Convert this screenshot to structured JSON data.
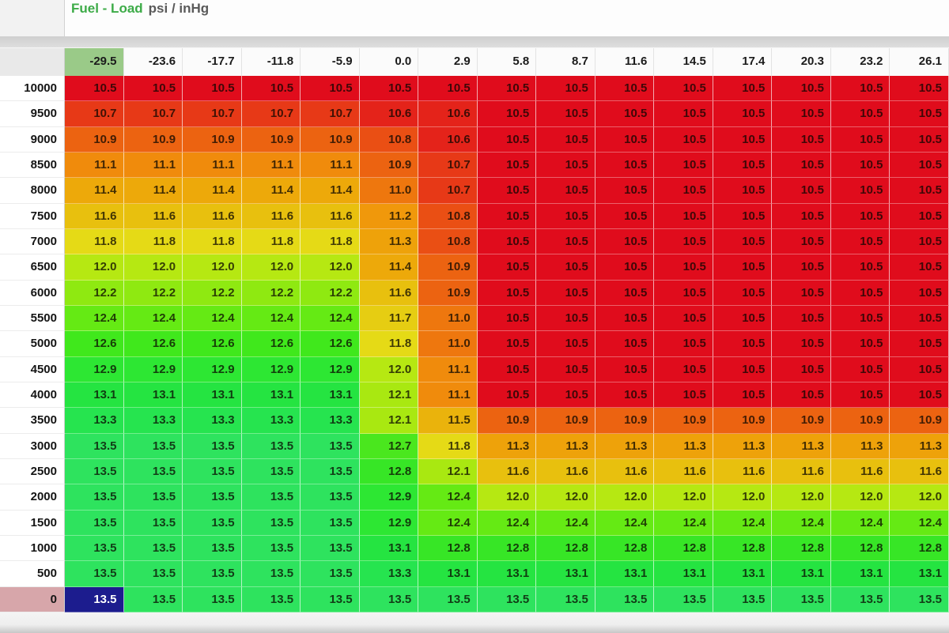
{
  "header": {
    "title": "Fuel - Load",
    "units": "psi / inHg"
  },
  "colors": {
    "title_green": "#3cab47",
    "units_gray": "#5a5a5a",
    "selected_cell_bg": "#1c1c8e",
    "selected_cell_text": "#ffffff",
    "selected_col_header_bg": "#9aca88",
    "selected_row_header_bg": "#d7a6aa",
    "value_colors": {
      "10.5": "#e00c1c",
      "10.6": "#e4231a",
      "10.7": "#e73917",
      "10.8": "#ea4f14",
      "10.9": "#ec6311",
      "11.0": "#ee770e",
      "11.1": "#f08b0c",
      "11.2": "#f0980b",
      "11.3": "#eea20a",
      "11.4": "#eda90a",
      "11.5": "#eab30c",
      "11.6": "#e8c00e",
      "11.7": "#e6cd12",
      "11.8": "#e5da16",
      "12.0": "#b6e812",
      "12.1": "#a9e811",
      "12.2": "#8fe911",
      "12.4": "#65ea14",
      "12.6": "#40e81c",
      "12.7": "#4ae71e",
      "12.8": "#37e626",
      "12.9": "#2de733",
      "13.1": "#25e441",
      "13.3": "#26e44f",
      "13.5": "#2ee35e"
    }
  },
  "table": {
    "col_headers": [
      "-29.5",
      "-23.6",
      "-17.7",
      "-11.8",
      "-5.9",
      "0.0",
      "2.9",
      "5.8",
      "8.7",
      "11.6",
      "14.5",
      "17.4",
      "20.3",
      "23.2",
      "26.1"
    ],
    "row_headers": [
      "10000",
      "9500",
      "9000",
      "8500",
      "8000",
      "7500",
      "7000",
      "6500",
      "6000",
      "5500",
      "5000",
      "4500",
      "4000",
      "3500",
      "3000",
      "2500",
      "2000",
      "1500",
      "1000",
      "500",
      "0"
    ],
    "selected": {
      "row_index": 20,
      "col_index": 0,
      "value": "13.5"
    },
    "rows": [
      [
        "10.5",
        "10.5",
        "10.5",
        "10.5",
        "10.5",
        "10.5",
        "10.5",
        "10.5",
        "10.5",
        "10.5",
        "10.5",
        "10.5",
        "10.5",
        "10.5",
        "10.5"
      ],
      [
        "10.7",
        "10.7",
        "10.7",
        "10.7",
        "10.7",
        "10.6",
        "10.6",
        "10.5",
        "10.5",
        "10.5",
        "10.5",
        "10.5",
        "10.5",
        "10.5",
        "10.5"
      ],
      [
        "10.9",
        "10.9",
        "10.9",
        "10.9",
        "10.9",
        "10.8",
        "10.6",
        "10.5",
        "10.5",
        "10.5",
        "10.5",
        "10.5",
        "10.5",
        "10.5",
        "10.5"
      ],
      [
        "11.1",
        "11.1",
        "11.1",
        "11.1",
        "11.1",
        "10.9",
        "10.7",
        "10.5",
        "10.5",
        "10.5",
        "10.5",
        "10.5",
        "10.5",
        "10.5",
        "10.5"
      ],
      [
        "11.4",
        "11.4",
        "11.4",
        "11.4",
        "11.4",
        "11.0",
        "10.7",
        "10.5",
        "10.5",
        "10.5",
        "10.5",
        "10.5",
        "10.5",
        "10.5",
        "10.5"
      ],
      [
        "11.6",
        "11.6",
        "11.6",
        "11.6",
        "11.6",
        "11.2",
        "10.8",
        "10.5",
        "10.5",
        "10.5",
        "10.5",
        "10.5",
        "10.5",
        "10.5",
        "10.5"
      ],
      [
        "11.8",
        "11.8",
        "11.8",
        "11.8",
        "11.8",
        "11.3",
        "10.8",
        "10.5",
        "10.5",
        "10.5",
        "10.5",
        "10.5",
        "10.5",
        "10.5",
        "10.5"
      ],
      [
        "12.0",
        "12.0",
        "12.0",
        "12.0",
        "12.0",
        "11.4",
        "10.9",
        "10.5",
        "10.5",
        "10.5",
        "10.5",
        "10.5",
        "10.5",
        "10.5",
        "10.5"
      ],
      [
        "12.2",
        "12.2",
        "12.2",
        "12.2",
        "12.2",
        "11.6",
        "10.9",
        "10.5",
        "10.5",
        "10.5",
        "10.5",
        "10.5",
        "10.5",
        "10.5",
        "10.5"
      ],
      [
        "12.4",
        "12.4",
        "12.4",
        "12.4",
        "12.4",
        "11.7",
        "11.0",
        "10.5",
        "10.5",
        "10.5",
        "10.5",
        "10.5",
        "10.5",
        "10.5",
        "10.5"
      ],
      [
        "12.6",
        "12.6",
        "12.6",
        "12.6",
        "12.6",
        "11.8",
        "11.0",
        "10.5",
        "10.5",
        "10.5",
        "10.5",
        "10.5",
        "10.5",
        "10.5",
        "10.5"
      ],
      [
        "12.9",
        "12.9",
        "12.9",
        "12.9",
        "12.9",
        "12.0",
        "11.1",
        "10.5",
        "10.5",
        "10.5",
        "10.5",
        "10.5",
        "10.5",
        "10.5",
        "10.5"
      ],
      [
        "13.1",
        "13.1",
        "13.1",
        "13.1",
        "13.1",
        "12.1",
        "11.1",
        "10.5",
        "10.5",
        "10.5",
        "10.5",
        "10.5",
        "10.5",
        "10.5",
        "10.5"
      ],
      [
        "13.3",
        "13.3",
        "13.3",
        "13.3",
        "13.3",
        "12.1",
        "11.5",
        "10.9",
        "10.9",
        "10.9",
        "10.9",
        "10.9",
        "10.9",
        "10.9",
        "10.9"
      ],
      [
        "13.5",
        "13.5",
        "13.5",
        "13.5",
        "13.5",
        "12.7",
        "11.8",
        "11.3",
        "11.3",
        "11.3",
        "11.3",
        "11.3",
        "11.3",
        "11.3",
        "11.3"
      ],
      [
        "13.5",
        "13.5",
        "13.5",
        "13.5",
        "13.5",
        "12.8",
        "12.1",
        "11.6",
        "11.6",
        "11.6",
        "11.6",
        "11.6",
        "11.6",
        "11.6",
        "11.6"
      ],
      [
        "13.5",
        "13.5",
        "13.5",
        "13.5",
        "13.5",
        "12.9",
        "12.4",
        "12.0",
        "12.0",
        "12.0",
        "12.0",
        "12.0",
        "12.0",
        "12.0",
        "12.0"
      ],
      [
        "13.5",
        "13.5",
        "13.5",
        "13.5",
        "13.5",
        "12.9",
        "12.4",
        "12.4",
        "12.4",
        "12.4",
        "12.4",
        "12.4",
        "12.4",
        "12.4",
        "12.4"
      ],
      [
        "13.5",
        "13.5",
        "13.5",
        "13.5",
        "13.5",
        "13.1",
        "12.8",
        "12.8",
        "12.8",
        "12.8",
        "12.8",
        "12.8",
        "12.8",
        "12.8",
        "12.8"
      ],
      [
        "13.5",
        "13.5",
        "13.5",
        "13.5",
        "13.5",
        "13.3",
        "13.1",
        "13.1",
        "13.1",
        "13.1",
        "13.1",
        "13.1",
        "13.1",
        "13.1",
        "13.1"
      ],
      [
        "13.5",
        "13.5",
        "13.5",
        "13.5",
        "13.5",
        "13.5",
        "13.5",
        "13.5",
        "13.5",
        "13.5",
        "13.5",
        "13.5",
        "13.5",
        "13.5",
        "13.5"
      ]
    ]
  }
}
